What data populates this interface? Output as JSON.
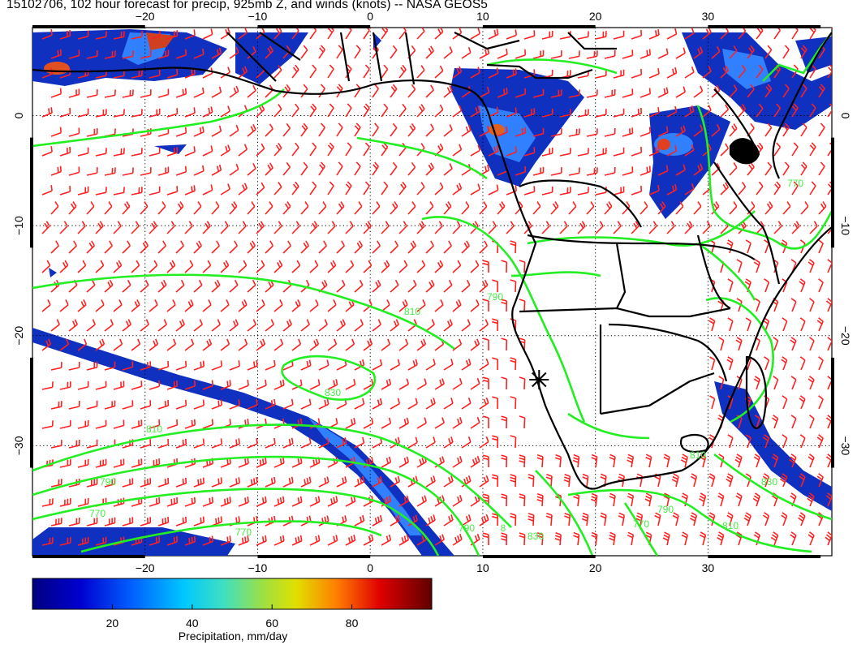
{
  "title": "15102706, 102 hour forecast for precip, 925mb Z, and winds (knots) -- NASA GEOS5",
  "map": {
    "lon_range": [
      -30,
      41
    ],
    "lat_range": [
      -40,
      8
    ],
    "lon_ticks": [
      -20,
      -10,
      0,
      10,
      20,
      30
    ],
    "lat_ticks": [
      0,
      -10,
      -20,
      -30
    ],
    "bottom_lon_labels": [
      "−20",
      "−10",
      "0",
      "10",
      "20",
      "30"
    ],
    "top_lon_labels": [
      "−20",
      "−10",
      "0",
      "10",
      "20",
      "30"
    ],
    "left_lat_labels": [
      "0",
      "−10",
      "−20",
      "−30"
    ],
    "right_lat_labels": [
      "0",
      "−10",
      "−20",
      "−30"
    ],
    "gridlines": "dotted",
    "marker": {
      "type": "star",
      "lon": 15,
      "lat": -24
    },
    "contour_labels": [
      "810",
      "830",
      "810",
      "790",
      "770",
      "770",
      "790",
      "8",
      "830",
      "770",
      "790",
      "810",
      "830",
      "810",
      "790",
      "770"
    ],
    "colors": {
      "wind_barbs": "#ff2020",
      "contours": "#22ee22",
      "coastlines": "#000000"
    }
  },
  "colorbar": {
    "ticks": [
      "20",
      "40",
      "60",
      "80"
    ],
    "range": [
      0,
      100
    ],
    "label": "Precipitation, mm/day"
  }
}
